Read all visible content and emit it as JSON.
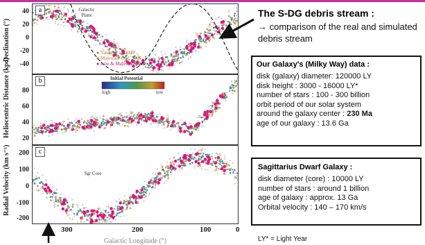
{
  "page": {
    "accent_color": "#c42fa5"
  },
  "figure": {
    "x_ticks": [
      "300",
      "200",
      "100",
      "0"
    ],
    "x_label": "Galactic Longitude (°)",
    "panels": [
      {
        "letter": "a",
        "y_label": "Declination (°)",
        "y_ticks": [
          "40",
          "20",
          "0",
          "-20",
          "-40"
        ],
        "annotation": "Galactic Plane",
        "legend": [
          "Yanny et al. 2009",
          "Majewski et al. 2004",
          "Law & Majewski 2010"
        ]
      },
      {
        "letter": "b",
        "y_label": "Heliocentric Distance (kpc)",
        "y_ticks": [
          "80",
          "60",
          "40",
          "20"
        ],
        "colorbar_title": "Initial Potential",
        "colorbar_high": "high",
        "colorbar_low": "low"
      },
      {
        "letter": "c",
        "y_label": "Radial Velocity (km s⁻¹)",
        "y_ticks": [
          "200",
          "100",
          "0",
          "-100",
          "-200"
        ],
        "annotation": "Sgr Core"
      }
    ],
    "colors": {
      "stream_teal": "#4a8f8a",
      "stream_gray": "#8a9a9a",
      "obs_magenta": "#e0157a",
      "obs_orange": "#d9a04a",
      "dashed": "#222222"
    }
  },
  "stream": {
    "title": "The S-DG debris stream :",
    "subtitle": "→ comparison of the real and simulated debris stream"
  },
  "galaxy_box": {
    "title": "Our Galaxy's (Milky Way) data :",
    "lines": [
      {
        "text": "disk (galaxy) diameter:  120000 LY"
      },
      {
        "text": "disk height :  3000 - 16000 LY*"
      },
      {
        "text": "number of stars :  100 - 300 billion"
      },
      {
        "text": "orbit period of our solar system"
      },
      {
        "text": "around the galaxy center :",
        "bold": "230 Ma"
      },
      {
        "text": "age of our galaxy :       13.6 Ga"
      }
    ]
  },
  "sgr_box": {
    "title": "Sagittarius  Dwarf Galaxy :",
    "lines": [
      "disk diameter (core) :   10000 LY",
      "number of stars : around 1 billion",
      "age of galaxy :     approx. 13 Ga",
      "Orbital velocity : 140 – 170 km/s"
    ]
  },
  "footnote": "LY* = Light Year"
}
